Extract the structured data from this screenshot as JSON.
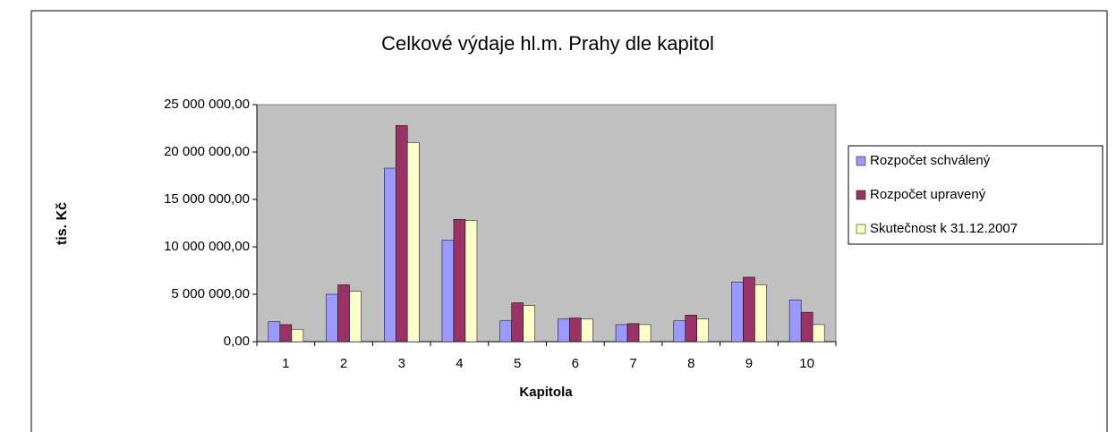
{
  "chart_data": {
    "type": "bar",
    "title": "Celkové výdaje hl.m. Prahy dle kapitol",
    "x_label": "Kapitola",
    "y_label": "tis. Kč",
    "categories": [
      "1",
      "2",
      "3",
      "4",
      "5",
      "6",
      "7",
      "8",
      "9",
      "10"
    ],
    "series": [
      {
        "name": "Rozpočet schválený",
        "color": "#9999ff",
        "values": [
          2100000,
          5000000,
          18300000,
          10700000,
          2200000,
          2400000,
          1800000,
          2200000,
          6300000,
          4400000
        ]
      },
      {
        "name": "Rozpočet upravený",
        "color": "#993366",
        "values": [
          1800000,
          6000000,
          22800000,
          12900000,
          4100000,
          2500000,
          1900000,
          2800000,
          6800000,
          3100000
        ]
      },
      {
        "name": "Skutečnost k 31.12.2007",
        "color": "#ffffcc",
        "values": [
          1300000,
          5300000,
          21000000,
          12800000,
          3800000,
          2400000,
          1800000,
          2400000,
          6000000,
          1800000
        ]
      }
    ],
    "ylim": [
      0,
      25000000
    ],
    "yticks": [
      {
        "value": 0,
        "label": "0,00"
      },
      {
        "value": 5000000,
        "label": "5 000 000,00"
      },
      {
        "value": 10000000,
        "label": "10 000 000,00"
      },
      {
        "value": 15000000,
        "label": "15 000 000,00"
      },
      {
        "value": 20000000,
        "label": "20 000 000,00"
      },
      {
        "value": 25000000,
        "label": "25 000 000,00"
      }
    ],
    "legend": "right"
  }
}
